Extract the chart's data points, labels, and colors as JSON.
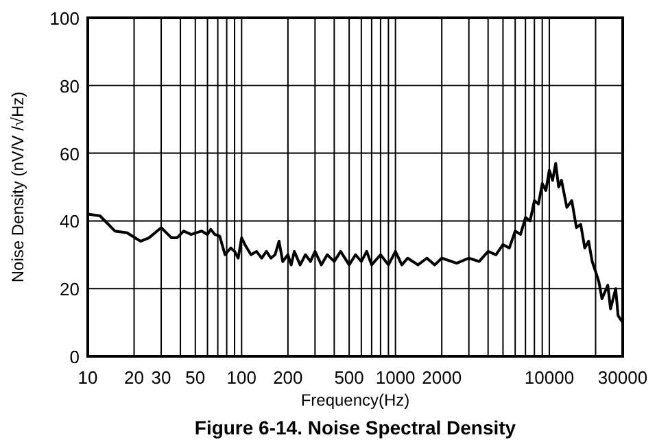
{
  "chart_data": {
    "type": "line",
    "title": "Figure 6-14. Noise Spectral Density",
    "xlabel": "Frequency(Hz)",
    "ylabel": "Noise Density (nV/V /√Hz)",
    "log": "x",
    "grid": true,
    "xlim": [
      10,
      30000
    ],
    "ylim": [
      0,
      100
    ],
    "xticks": [
      10,
      20,
      30,
      {
        "value": 40,
        "label": null
      },
      50,
      {
        "value": 60,
        "label": null
      },
      {
        "value": 70,
        "label": null
      },
      {
        "value": 80,
        "label": null
      },
      {
        "value": 90,
        "label": null
      },
      100,
      200,
      {
        "value": 300,
        "label": null
      },
      {
        "value": 400,
        "label": null
      },
      500,
      {
        "value": 600,
        "label": null
      },
      {
        "value": 700,
        "label": null
      },
      {
        "value": 800,
        "label": null
      },
      {
        "value": 900,
        "label": null
      },
      1000,
      2000,
      {
        "value": 3000,
        "label": null
      },
      {
        "value": 4000,
        "label": null
      },
      {
        "value": 5000,
        "label": null
      },
      {
        "value": 6000,
        "label": null
      },
      {
        "value": 7000,
        "label": null
      },
      {
        "value": 8000,
        "label": null
      },
      {
        "value": 9000,
        "label": null
      },
      10000,
      {
        "value": 20000,
        "label": null
      },
      30000
    ],
    "yticks": [
      0,
      20,
      40,
      60,
      80,
      100
    ],
    "series": [
      {
        "color": "#000000",
        "x": [
          10,
          12,
          15,
          18,
          22,
          25,
          30,
          35,
          38,
          42,
          47,
          55,
          60,
          63,
          67,
          72,
          78,
          85,
          90,
          95,
          100,
          105,
          115,
          125,
          135,
          145,
          155,
          165,
          175,
          185,
          200,
          210,
          220,
          240,
          260,
          280,
          300,
          330,
          360,
          400,
          440,
          500,
          550,
          600,
          650,
          700,
          800,
          900,
          1000,
          1100,
          1200,
          1400,
          1600,
          1800,
          2000,
          2500,
          3000,
          3500,
          4000,
          4500,
          5000,
          5500,
          6000,
          6500,
          7000,
          7500,
          8000,
          8500,
          9000,
          9500,
          10000,
          10500,
          11000,
          11500,
          12000,
          13000,
          14000,
          15000,
          16000,
          17000,
          18000,
          19000,
          20000,
          21000,
          22000,
          24000,
          25000,
          27000,
          28000,
          30000
        ],
        "values": [
          42,
          41.5,
          37,
          36.5,
          34,
          35,
          38,
          35,
          35,
          37,
          36,
          37,
          36,
          37.5,
          36,
          35.5,
          30,
          32,
          31,
          29,
          35,
          33,
          30,
          31,
          29,
          31,
          29,
          30,
          34,
          28,
          30,
          27,
          31,
          27,
          30,
          28,
          31,
          27,
          30,
          28,
          31,
          27,
          30,
          28,
          31,
          27,
          30,
          27,
          31,
          27,
          29,
          27,
          29,
          27,
          29,
          27.5,
          29,
          28,
          31,
          30,
          33,
          32,
          37,
          36,
          41,
          40,
          46,
          45,
          51,
          49,
          55,
          52,
          57,
          50,
          52,
          44,
          46,
          38,
          39,
          32,
          34,
          28,
          25,
          22,
          17,
          21,
          14,
          20,
          12,
          10
        ]
      }
    ]
  }
}
